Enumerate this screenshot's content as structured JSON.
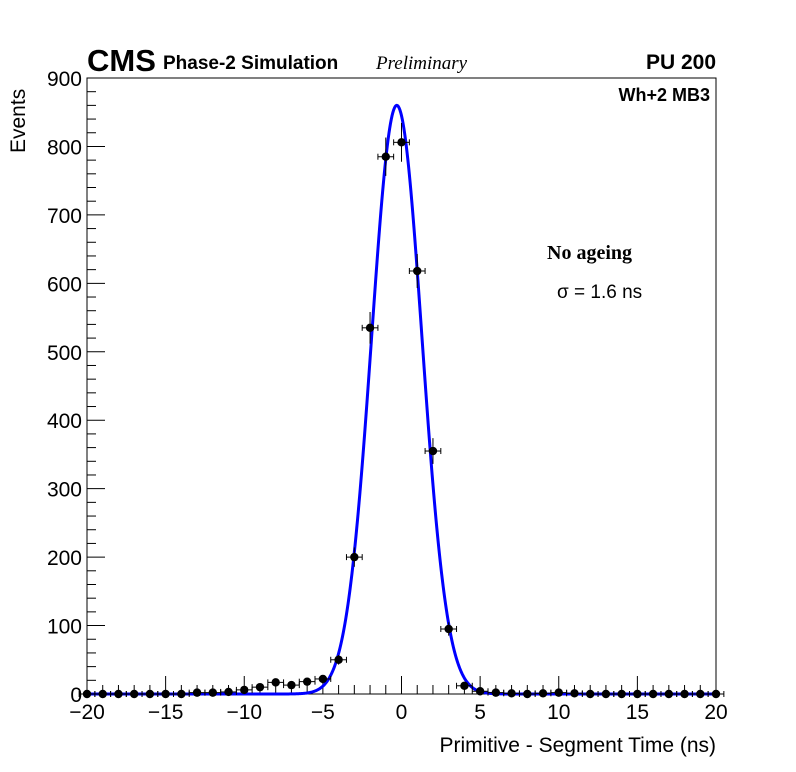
{
  "chart_data": {
    "type": "scatter",
    "experiment": "CMS",
    "subtitle": "Phase-2 Simulation",
    "status": "Preliminary",
    "pileup": "PU 200",
    "station": "Wh+2 MB3",
    "annotation_title": "No ageing",
    "annotation_sigma": "σ = 1.6 ns",
    "xlabel": "Primitive - Segment Time (ns)",
    "ylabel": "Events",
    "xlim": [
      -20,
      20
    ],
    "ylim": [
      0,
      900
    ],
    "x_ticks": [
      -20,
      -15,
      -10,
      -5,
      0,
      5,
      10,
      15,
      20
    ],
    "x_tick_labels": [
      "−20",
      "−15",
      "−10",
      "−5",
      "0",
      "5",
      "10",
      "15",
      "20"
    ],
    "y_ticks": [
      0,
      100,
      200,
      300,
      400,
      500,
      600,
      700,
      800,
      900
    ],
    "y_tick_labels": [
      "0",
      "100",
      "200",
      "300",
      "400",
      "500",
      "600",
      "700",
      "800",
      "900"
    ],
    "grid": false,
    "marker_color": "#000000",
    "fit_color": "#0000ff",
    "series": [
      {
        "kind": "points",
        "x": [
          -20,
          -19,
          -18,
          -17,
          -16,
          -15,
          -14,
          -13,
          -12,
          -11,
          -10,
          -9,
          -8,
          -7,
          -6,
          -5,
          -4,
          -3,
          -2,
          -1,
          0,
          1,
          2,
          3,
          4,
          5,
          6,
          7,
          8,
          9,
          10,
          11,
          12,
          13,
          14,
          15,
          16,
          17,
          18,
          19,
          20
        ],
        "values": [
          0,
          0,
          0,
          0,
          0,
          0,
          0,
          2,
          2,
          3,
          6,
          10,
          17,
          13,
          18,
          22,
          50,
          200,
          535,
          785,
          806,
          618,
          355,
          95,
          12,
          4,
          2,
          1,
          0,
          1,
          2,
          1,
          0,
          0,
          0,
          0,
          0,
          0,
          0,
          0,
          0
        ]
      },
      {
        "kind": "gaussian_fit",
        "amplitude": 860,
        "mean": -0.3,
        "sigma": 1.6
      }
    ]
  }
}
